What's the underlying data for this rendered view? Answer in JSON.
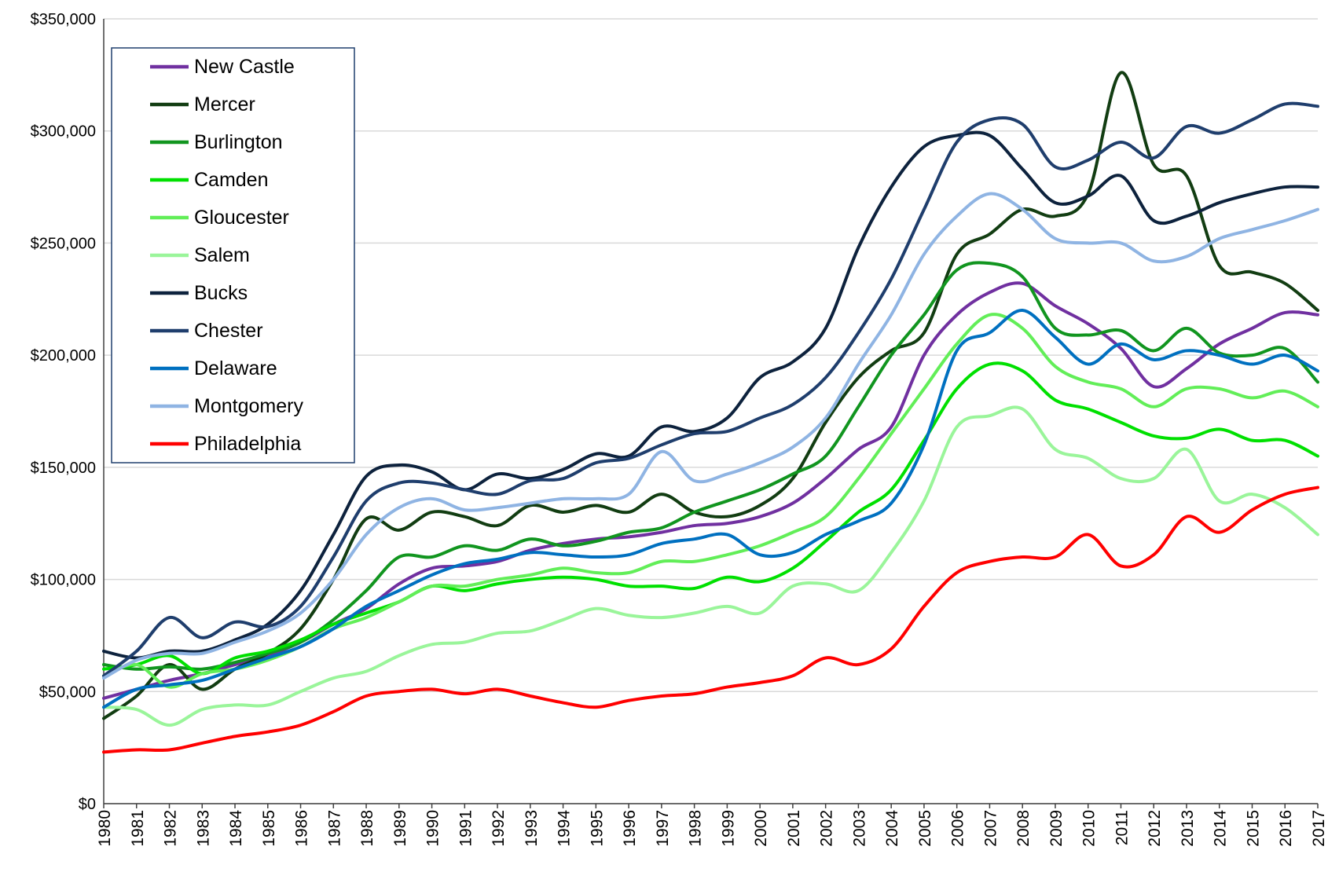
{
  "chart_data": {
    "type": "line",
    "x": [
      1980,
      1981,
      1982,
      1983,
      1984,
      1985,
      1986,
      1987,
      1988,
      1989,
      1990,
      1991,
      1992,
      1993,
      1994,
      1995,
      1996,
      1997,
      1998,
      1999,
      2000,
      2001,
      2002,
      2003,
      2004,
      2005,
      2006,
      2007,
      2008,
      2009,
      2010,
      2011,
      2012,
      2013,
      2014,
      2015,
      2016,
      2017
    ],
    "xlim": [
      1980,
      2017
    ],
    "xticks": [
      1980,
      1981,
      1982,
      1983,
      1984,
      1985,
      1986,
      1987,
      1988,
      1989,
      1990,
      1991,
      1992,
      1993,
      1994,
      1995,
      1996,
      1997,
      1998,
      1999,
      2000,
      2001,
      2002,
      2003,
      2004,
      2005,
      2006,
      2007,
      2008,
      2009,
      2010,
      2011,
      2012,
      2013,
      2014,
      2015,
      2016,
      2017
    ],
    "ylim": [
      0,
      350000
    ],
    "yticks": [
      {
        "value": 0,
        "label": "$0"
      },
      {
        "value": 50000,
        "label": "$50,000"
      },
      {
        "value": 100000,
        "label": "$100,000"
      },
      {
        "value": 150000,
        "label": "$150,000"
      },
      {
        "value": 200000,
        "label": "$200,000"
      },
      {
        "value": 250000,
        "label": "$250,000"
      },
      {
        "value": 300000,
        "label": "$300,000"
      },
      {
        "value": 350000,
        "label": "$350,000"
      }
    ],
    "grid": true,
    "legend": "upper left",
    "series": [
      {
        "name": "New Castle",
        "color": "#7030a0",
        "values": [
          47000,
          51000,
          55000,
          58000,
          62000,
          66000,
          72000,
          80000,
          87000,
          98000,
          105000,
          106000,
          108000,
          113000,
          116000,
          118000,
          119000,
          121000,
          124000,
          125000,
          128000,
          134000,
          145000,
          158000,
          168000,
          200000,
          218000,
          228000,
          232000,
          222000,
          214000,
          203000,
          186000,
          194000,
          205000,
          212000,
          219000,
          218000
        ]
      },
      {
        "name": "Mercer",
        "color": "#123d12",
        "values": [
          38000,
          48000,
          62000,
          51000,
          60000,
          67000,
          78000,
          100000,
          127000,
          122000,
          130000,
          128000,
          124000,
          133000,
          130000,
          133000,
          130000,
          138000,
          130000,
          128000,
          133000,
          145000,
          170000,
          190000,
          202000,
          210000,
          245000,
          254000,
          265000,
          262000,
          272000,
          326000,
          285000,
          280000,
          240000,
          237000,
          232000,
          220000
        ]
      },
      {
        "name": "Burlington",
        "color": "#11951f",
        "values": [
          62000,
          60000,
          61000,
          60000,
          63000,
          67000,
          72000,
          82000,
          95000,
          110000,
          110000,
          115000,
          113000,
          118000,
          115000,
          117000,
          121000,
          123000,
          130000,
          135000,
          140000,
          147000,
          155000,
          177000,
          200000,
          218000,
          238000,
          241000,
          235000,
          212000,
          209000,
          211000,
          202000,
          212000,
          201000,
          200000,
          203000,
          188000
        ]
      },
      {
        "name": "Camden",
        "color": "#00e000",
        "values": [
          60000,
          62000,
          66000,
          58000,
          65000,
          68000,
          73000,
          80000,
          85000,
          90000,
          97000,
          95000,
          98000,
          100000,
          101000,
          100000,
          97000,
          97000,
          96000,
          101000,
          99000,
          105000,
          117000,
          130000,
          140000,
          162000,
          185000,
          196000,
          193000,
          180000,
          176000,
          170000,
          164000,
          163000,
          167000,
          162000,
          162000,
          155000
        ]
      },
      {
        "name": "Gloucester",
        "color": "#62ee58",
        "values": [
          57000,
          62000,
          52000,
          58000,
          60000,
          64000,
          70000,
          78000,
          83000,
          90000,
          97000,
          97000,
          100000,
          102000,
          105000,
          103000,
          103000,
          108000,
          108000,
          111000,
          115000,
          121000,
          128000,
          145000,
          165000,
          185000,
          205000,
          218000,
          212000,
          195000,
          188000,
          185000,
          177000,
          185000,
          185000,
          181000,
          184000,
          177000
        ]
      },
      {
        "name": "Salem",
        "color": "#9af59a",
        "values": [
          43000,
          42000,
          35000,
          42000,
          44000,
          44000,
          50000,
          56000,
          59000,
          66000,
          71000,
          72000,
          76000,
          77000,
          82000,
          87000,
          84000,
          83000,
          85000,
          88000,
          85000,
          97000,
          98000,
          95000,
          112000,
          135000,
          168000,
          173000,
          176000,
          158000,
          154000,
          145000,
          145000,
          158000,
          135000,
          138000,
          132000,
          120000
        ]
      },
      {
        "name": "Bucks",
        "color": "#0d223d",
        "values": [
          68000,
          65000,
          68000,
          68000,
          73000,
          80000,
          95000,
          120000,
          146000,
          151000,
          148000,
          140000,
          147000,
          145000,
          149000,
          156000,
          155000,
          168000,
          166000,
          172000,
          190000,
          197000,
          212000,
          248000,
          275000,
          293000,
          298000,
          298000,
          283000,
          268000,
          271000,
          280000,
          260000,
          262000,
          268000,
          272000,
          275000,
          275000
        ]
      },
      {
        "name": "Chester",
        "color": "#1f3e6d",
        "values": [
          57000,
          68000,
          83000,
          74000,
          81000,
          79000,
          88000,
          110000,
          135000,
          143000,
          143000,
          140000,
          138000,
          144000,
          145000,
          152000,
          154000,
          160000,
          165000,
          166000,
          172000,
          178000,
          190000,
          210000,
          234000,
          265000,
          295000,
          305000,
          303000,
          284000,
          287000,
          295000,
          288000,
          302000,
          299000,
          305000,
          312000,
          311000
        ]
      },
      {
        "name": "Delaware",
        "color": "#0070c0",
        "values": [
          43000,
          51000,
          53000,
          55000,
          60000,
          65000,
          70000,
          78000,
          88000,
          95000,
          102000,
          107000,
          109000,
          112000,
          111000,
          110000,
          111000,
          116000,
          118000,
          120000,
          111000,
          112000,
          120000,
          126000,
          134000,
          160000,
          202000,
          210000,
          220000,
          208000,
          196000,
          205000,
          198000,
          202000,
          200000,
          196000,
          200000,
          193000
        ]
      },
      {
        "name": "Montgomery",
        "color": "#8fb4e3",
        "values": [
          56000,
          64000,
          67000,
          67000,
          72000,
          77000,
          85000,
          100000,
          120000,
          132000,
          136000,
          131000,
          132000,
          134000,
          136000,
          136000,
          138000,
          157000,
          144000,
          147000,
          152000,
          159000,
          172000,
          196000,
          218000,
          245000,
          262000,
          272000,
          265000,
          252000,
          250000,
          250000,
          242000,
          244000,
          252000,
          256000,
          260000,
          265000
        ]
      },
      {
        "name": "Philadelphia",
        "color": "#ff0000",
        "values": [
          23000,
          24000,
          24000,
          27000,
          30000,
          32000,
          35000,
          41000,
          48000,
          50000,
          51000,
          49000,
          51000,
          48000,
          45000,
          43000,
          46000,
          48000,
          49000,
          52000,
          54000,
          57000,
          65000,
          62000,
          69000,
          88000,
          103000,
          108000,
          110000,
          110000,
          120000,
          106000,
          111000,
          128000,
          121000,
          131000,
          138000,
          141000
        ]
      }
    ]
  }
}
